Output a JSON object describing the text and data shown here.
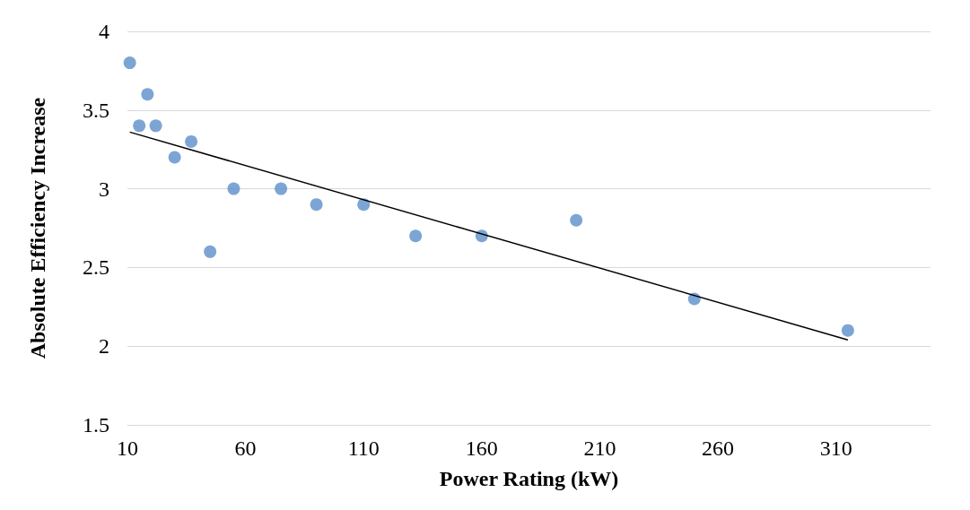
{
  "chart_data": {
    "type": "scatter",
    "xlabel": "Power Rating (kW)",
    "ylabel": "Absolute Efficiency Increase",
    "xlim": [
      10,
      350
    ],
    "xticks": [
      10,
      60,
      110,
      160,
      210,
      260,
      310
    ],
    "ylim": [
      1.5,
      4
    ],
    "yticks": [
      1.5,
      2,
      2.5,
      3,
      3.5,
      4
    ],
    "grid": "y",
    "marker": "circle",
    "series": [
      {
        "color": "#5b8fcb",
        "x": [
          11,
          15,
          18.5,
          22,
          30,
          37,
          45,
          55,
          75,
          90,
          110,
          132,
          160,
          200,
          250,
          315
        ],
        "values": [
          3.8,
          3.4,
          3.6,
          3.4,
          3.2,
          3.3,
          2.6,
          3.0,
          3.0,
          2.9,
          2.9,
          2.7,
          2.7,
          2.8,
          2.3,
          2.1
        ]
      },
      {
        "type": "line",
        "color": "#000000",
        "marker": "none",
        "line_style": "solid",
        "x": [
          11,
          315
        ],
        "values": [
          3.36,
          2.04
        ]
      }
    ]
  }
}
